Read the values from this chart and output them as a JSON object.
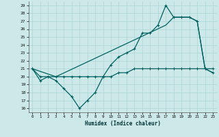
{
  "xlabel": "Humidex (Indice chaleur)",
  "xlim": [
    -0.5,
    23.5
  ],
  "ylim": [
    15.5,
    29.5
  ],
  "yticks": [
    16,
    17,
    18,
    19,
    20,
    21,
    22,
    23,
    24,
    25,
    26,
    27,
    28,
    29
  ],
  "xticks": [
    0,
    1,
    2,
    3,
    4,
    5,
    6,
    7,
    8,
    9,
    10,
    11,
    12,
    13,
    14,
    15,
    16,
    17,
    18,
    19,
    20,
    21,
    22,
    23
  ],
  "background_color": "#cce8e8",
  "grid_color": "#aad4d4",
  "line_color": "#006060",
  "line1_x": [
    0,
    1,
    2,
    3,
    4,
    5,
    6,
    7,
    8,
    9,
    10,
    11,
    12,
    13,
    14,
    15,
    16,
    17,
    18,
    19,
    20,
    21,
    22,
    23
  ],
  "line1_y": [
    21.0,
    19.5,
    20.0,
    19.5,
    18.5,
    17.5,
    16.0,
    17.0,
    18.0,
    20.0,
    21.5,
    22.5,
    23.0,
    23.5,
    25.5,
    25.5,
    26.5,
    29.0,
    27.5,
    27.5,
    27.5,
    27.0,
    21.0,
    20.5
  ],
  "line2_x": [
    0,
    3,
    17,
    18,
    19,
    20,
    21,
    22,
    23
  ],
  "line2_y": [
    21.0,
    20.0,
    26.5,
    27.5,
    27.5,
    27.5,
    27.0,
    21.0,
    20.5
  ],
  "line3_x": [
    0,
    1,
    2,
    3,
    4,
    5,
    6,
    7,
    8,
    9,
    10,
    11,
    12,
    13,
    14,
    15,
    16,
    17,
    18,
    19,
    20,
    21,
    22,
    23
  ],
  "line3_y": [
    21.0,
    20.0,
    20.0,
    20.0,
    20.0,
    20.0,
    20.0,
    20.0,
    20.0,
    20.0,
    20.0,
    20.5,
    20.5,
    21.0,
    21.0,
    21.0,
    21.0,
    21.0,
    21.0,
    21.0,
    21.0,
    21.0,
    21.0,
    21.0
  ]
}
